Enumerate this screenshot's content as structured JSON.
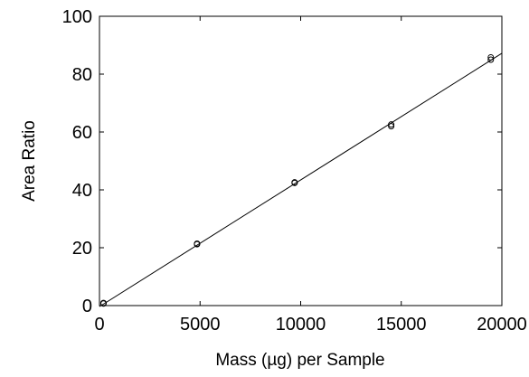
{
  "chart_data": {
    "type": "scatter",
    "title": "",
    "xlabel": "Mass (µg) per Sample",
    "ylabel": "Area Ratio",
    "xlim": [
      0,
      20000
    ],
    "ylim": [
      0,
      100
    ],
    "xticks": [
      0,
      5000,
      10000,
      15000,
      20000
    ],
    "yticks": [
      0,
      20,
      40,
      60,
      80,
      100
    ],
    "grid": false,
    "legend": "none",
    "series": [
      {
        "points": [
          [
            200,
            0.7
          ],
          [
            200,
            0.9
          ],
          [
            4850,
            21.2
          ],
          [
            4850,
            21.4
          ],
          [
            9700,
            42.4
          ],
          [
            9700,
            42.6
          ],
          [
            14500,
            62.0
          ],
          [
            14500,
            62.6
          ],
          [
            19450,
            85.0
          ],
          [
            19450,
            85.8
          ]
        ]
      }
    ],
    "fit_line": {
      "x": [
        0,
        20000
      ],
      "y": [
        -0.35,
        87.2
      ]
    },
    "colors": {
      "marker": "#000000",
      "line": "#000000",
      "axes": "#000000"
    }
  }
}
